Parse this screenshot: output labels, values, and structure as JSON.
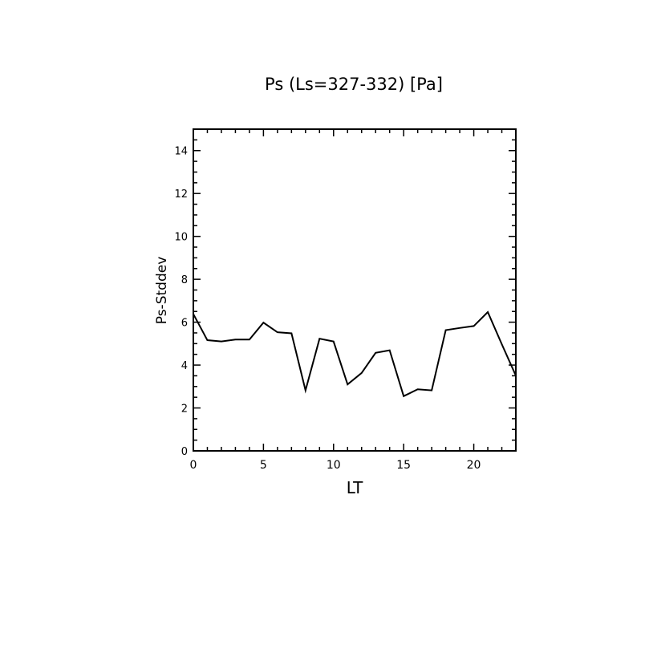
{
  "chart_data": {
    "type": "line",
    "title": "Ps (Ls=327-332) [Pa]",
    "xlabel": "LT",
    "ylabel": "Ps-Stddev",
    "xlim": [
      0,
      23
    ],
    "ylim": [
      0,
      15
    ],
    "x_ticks": [
      0,
      5,
      10,
      15,
      20
    ],
    "y_ticks": [
      0,
      2,
      4,
      6,
      8,
      10,
      12,
      14
    ],
    "grid": false,
    "line_color": "#000000",
    "x": [
      0,
      1,
      2,
      3,
      4,
      5,
      6,
      7,
      8,
      9,
      10,
      11,
      12,
      13,
      14,
      15,
      16,
      17,
      18,
      19,
      20,
      21,
      22,
      23
    ],
    "values": [
      6.38,
      5.16,
      5.1,
      5.19,
      5.19,
      5.98,
      5.53,
      5.48,
      2.82,
      5.23,
      5.1,
      3.1,
      3.63,
      4.57,
      4.69,
      2.55,
      2.87,
      2.82,
      5.63,
      5.73,
      5.82,
      6.47,
      4.97,
      3.51
    ]
  }
}
